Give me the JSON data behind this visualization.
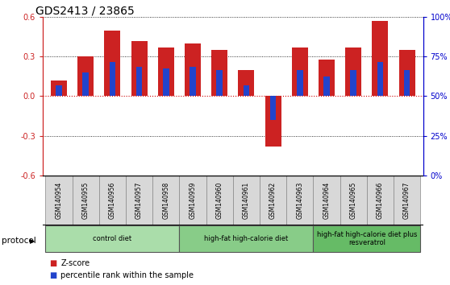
{
  "title": "GDS2413 / 23865",
  "samples": [
    "GSM140954",
    "GSM140955",
    "GSM140956",
    "GSM140957",
    "GSM140958",
    "GSM140959",
    "GSM140960",
    "GSM140961",
    "GSM140962",
    "GSM140963",
    "GSM140964",
    "GSM140965",
    "GSM140966",
    "GSM140967"
  ],
  "z_scores": [
    0.12,
    0.3,
    0.5,
    0.42,
    0.37,
    0.4,
    0.35,
    0.2,
    -0.38,
    0.37,
    0.28,
    0.37,
    0.57,
    0.35
  ],
  "pct_ranks": [
    0.08,
    0.18,
    0.26,
    0.22,
    0.21,
    0.22,
    0.2,
    0.08,
    -0.18,
    0.2,
    0.15,
    0.2,
    0.26,
    0.2
  ],
  "ylim": [
    -0.6,
    0.6
  ],
  "yticks_left": [
    -0.6,
    -0.3,
    0.0,
    0.3,
    0.6
  ],
  "yticks_right": [
    0,
    25,
    50,
    75,
    100
  ],
  "bar_color": "#cc2222",
  "pct_color": "#2244cc",
  "zero_line_color": "#cc0000",
  "protocol_groups": [
    {
      "label": "control diet",
      "start": 0,
      "end": 4,
      "color": "#aaddaa"
    },
    {
      "label": "high-fat high-calorie diet",
      "start": 5,
      "end": 9,
      "color": "#88cc88"
    },
    {
      "label": "high-fat high-calorie diet plus\nresveratrol",
      "start": 10,
      "end": 13,
      "color": "#66bb66"
    }
  ],
  "legend_items": [
    {
      "label": "Z-score",
      "color": "#cc2222"
    },
    {
      "label": "percentile rank within the sample",
      "color": "#2244cc"
    }
  ],
  "protocol_label": "protocol",
  "title_fontsize": 10,
  "tick_fontsize": 7,
  "bar_width": 0.6
}
